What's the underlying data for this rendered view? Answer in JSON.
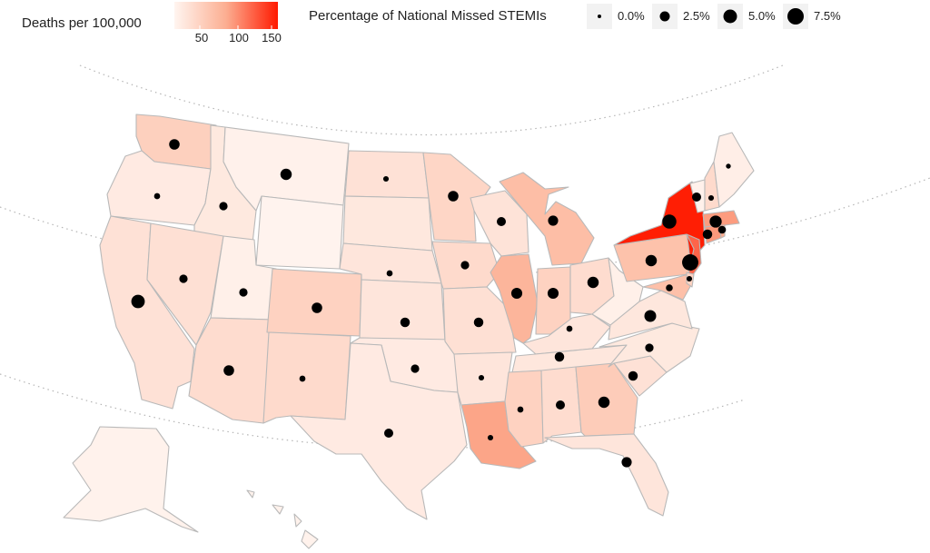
{
  "legend": {
    "color_title": "Deaths per 100,000",
    "color_ticks": [
      "50",
      "100",
      "150"
    ],
    "color_scale_low": "#fff5f0",
    "color_scale_high": "#ff1a00",
    "size_title": "Percentage of National Missed STEMIs",
    "size_items": [
      "0.0%",
      "2.5%",
      "5.0%",
      "7.5%"
    ]
  },
  "chart_data": {
    "type": "choropleth",
    "color_variable": "Deaths per 100,000",
    "color_range": [
      0,
      160
    ],
    "size_variable": "Percentage of National Missed STEMIs",
    "size_range_pct": [
      0,
      7.5
    ],
    "background": "white",
    "states": [
      {
        "id": "WA",
        "deaths": 42,
        "missed_pct": 2.0
      },
      {
        "id": "OR",
        "deaths": 12,
        "missed_pct": 0.3
      },
      {
        "id": "CA",
        "deaths": 22,
        "missed_pct": 4.0
      },
      {
        "id": "ID",
        "deaths": 14,
        "missed_pct": 1.0
      },
      {
        "id": "NV",
        "deaths": 24,
        "missed_pct": 1.0
      },
      {
        "id": "MT",
        "deaths": 4,
        "missed_pct": 2.5
      },
      {
        "id": "WY",
        "deaths": 2,
        "missed_pct": 0.0
      },
      {
        "id": "UT",
        "deaths": 6,
        "missed_pct": 1.0
      },
      {
        "id": "AZ",
        "deaths": 28,
        "missed_pct": 2.0
      },
      {
        "id": "CO",
        "deaths": 40,
        "missed_pct": 2.0
      },
      {
        "id": "NM",
        "deaths": 30,
        "missed_pct": 0.3
      },
      {
        "id": "ND",
        "deaths": 22,
        "missed_pct": 0.2
      },
      {
        "id": "SD",
        "deaths": 15,
        "missed_pct": 0.0
      },
      {
        "id": "NE",
        "deaths": 18,
        "missed_pct": 0.3
      },
      {
        "id": "KS",
        "deaths": 18,
        "missed_pct": 1.5
      },
      {
        "id": "OK",
        "deaths": 12,
        "missed_pct": 1.0
      },
      {
        "id": "TX",
        "deaths": 12,
        "missed_pct": 1.3
      },
      {
        "id": "MN",
        "deaths": 35,
        "missed_pct": 2.0
      },
      {
        "id": "IA",
        "deaths": 30,
        "missed_pct": 1.0
      },
      {
        "id": "MO",
        "deaths": 24,
        "missed_pct": 1.5
      },
      {
        "id": "AR",
        "deaths": 18,
        "missed_pct": 0.2
      },
      {
        "id": "LA",
        "deaths": 85,
        "missed_pct": 0.2
      },
      {
        "id": "WI",
        "deaths": 20,
        "missed_pct": 1.3
      },
      {
        "id": "IL",
        "deaths": 72,
        "missed_pct": 2.3
      },
      {
        "id": "MI",
        "deaths": 62,
        "missed_pct": 1.8
      },
      {
        "id": "IN",
        "deaths": 40,
        "missed_pct": 2.3
      },
      {
        "id": "OH",
        "deaths": 28,
        "missed_pct": 2.5
      },
      {
        "id": "KY",
        "deaths": 18,
        "missed_pct": 0.3
      },
      {
        "id": "TN",
        "deaths": 16,
        "missed_pct": 1.5
      },
      {
        "id": "MS",
        "deaths": 40,
        "missed_pct": 0.3
      },
      {
        "id": "AL",
        "deaths": 28,
        "missed_pct": 1.3
      },
      {
        "id": "GA",
        "deaths": 46,
        "missed_pct": 2.5
      },
      {
        "id": "FL",
        "deaths": 18,
        "missed_pct": 1.8
      },
      {
        "id": "SC",
        "deaths": 22,
        "missed_pct": 1.5
      },
      {
        "id": "NC",
        "deaths": 14,
        "missed_pct": 1.0
      },
      {
        "id": "VA",
        "deaths": 16,
        "missed_pct": 2.8
      },
      {
        "id": "WV",
        "deaths": 6,
        "missed_pct": 0.0
      },
      {
        "id": "PA",
        "deaths": 58,
        "missed_pct": 2.5
      },
      {
        "id": "NY",
        "deaths": 158,
        "missed_pct": 4.5
      },
      {
        "id": "NJ",
        "deaths": 120,
        "missed_pct": 6.5
      },
      {
        "id": "MD",
        "deaths": 60,
        "missed_pct": 0.5
      },
      {
        "id": "DE",
        "deaths": 40,
        "missed_pct": 0.2
      },
      {
        "id": "CT",
        "deaths": 92,
        "missed_pct": 1.5
      },
      {
        "id": "RI",
        "deaths": 80,
        "missed_pct": 0.8
      },
      {
        "id": "MA",
        "deaths": 90,
        "missed_pct": 3.0
      },
      {
        "id": "VT",
        "deaths": 4,
        "missed_pct": 1.3
      },
      {
        "id": "NH",
        "deaths": 30,
        "missed_pct": 0.2
      },
      {
        "id": "ME",
        "deaths": 8,
        "missed_pct": 0.1
      },
      {
        "id": "AK",
        "deaths": 3,
        "missed_pct": 0.0
      },
      {
        "id": "HI",
        "deaths": 3,
        "missed_pct": 0.0
      }
    ]
  }
}
